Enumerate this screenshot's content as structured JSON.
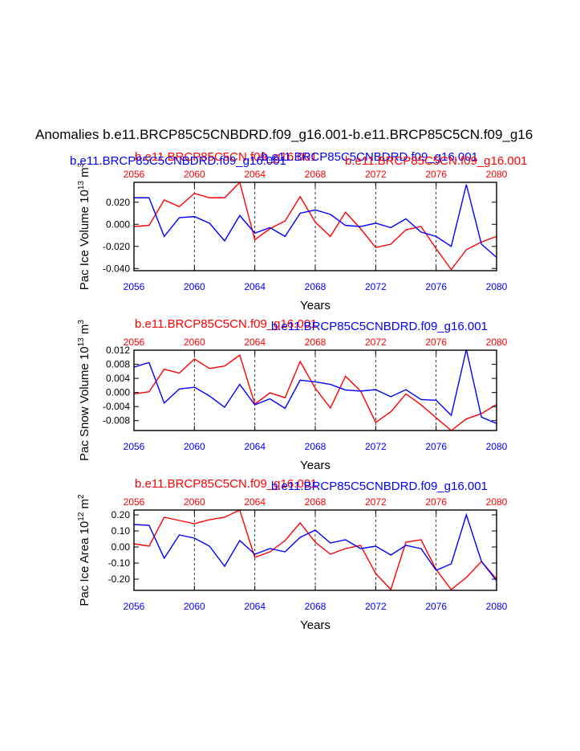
{
  "figure_title": "Anomalies b.e11.BRCP85C5CNBDRD.f09_g16.001-b.e11.BRCP85C5CN.f09_g16",
  "colors": {
    "run_a": "#ff0000",
    "run_b": "#0000ff",
    "axis": "#000000"
  },
  "chart_data": [
    {
      "type": "line",
      "ylabel_base": "Pac Ice Volume 10",
      "ylabel_exp": "13",
      "ylabel_unit": " m",
      "ylabel_unit_exp": "3",
      "xlabel": "Years",
      "legend_red": "b.e11.BRCP85C5CN.f09_g16.001",
      "legend_blue": "b.e11.BRCP85C5CNBDRD.f09_g16.001",
      "legend_red_alt": "b.e11.BRCP85C5CN.f09_g16.001",
      "legend_blue_alt": "b.e11.BRCP85C5CNBDRD.f09_g16.001",
      "xlim": [
        2056,
        2080
      ],
      "ylim": [
        -0.042,
        0.038
      ],
      "xticks": [
        2056,
        2060,
        2064,
        2068,
        2072,
        2076,
        2080
      ],
      "xtick_labels": [
        "2056",
        "2060",
        "2064",
        "2068",
        "2072",
        "2076",
        "2080"
      ],
      "yticks": [
        0.02,
        0.0,
        -0.02,
        -0.04
      ],
      "ytick_labels": [
        "0.020",
        "0.000",
        "-0.020",
        "-0.040"
      ],
      "grid_x": [
        2060,
        2064,
        2068,
        2072,
        2076
      ],
      "x": [
        2056,
        2057,
        2058,
        2059,
        2060,
        2061,
        2062,
        2063,
        2064,
        2065,
        2066,
        2067,
        2068,
        2069,
        2070,
        2071,
        2072,
        2073,
        2074,
        2075,
        2076,
        2077,
        2078,
        2079,
        2080
      ],
      "series": [
        {
          "name": "b.e11.BRCP85C5CN.f09_g16.001",
          "color": "#ff0000",
          "values": [
            -0.002,
            -0.001,
            0.022,
            0.016,
            0.028,
            0.024,
            0.024,
            0.038,
            -0.014,
            -0.004,
            0.003,
            0.025,
            0.002,
            -0.011,
            0.011,
            -0.004,
            -0.021,
            -0.018,
            -0.005,
            -0.002,
            -0.022,
            -0.041,
            -0.023,
            -0.016,
            -0.011
          ]
        },
        {
          "name": "b.e11.BRCP85C5CNBDRD.f09_g16.001",
          "color": "#0000ff",
          "values": [
            0.024,
            0.024,
            -0.011,
            0.006,
            0.007,
            0.001,
            -0.015,
            0.008,
            -0.008,
            -0.003,
            -0.011,
            0.01,
            0.013,
            0.009,
            -0.001,
            -0.002,
            0.001,
            -0.003,
            0.005,
            -0.007,
            -0.011,
            -0.02,
            0.036,
            -0.018,
            -0.03
          ]
        }
      ]
    },
    {
      "type": "line",
      "ylabel_base": "Pac Snow Volume 10",
      "ylabel_exp": "13",
      "ylabel_unit": " m",
      "ylabel_unit_exp": "3",
      "xlabel": "Years",
      "legend_red": "b.e11.BRCP85C5CN.f09_g16.001",
      "legend_blue": "b.e11.BRCP85C5CNBDRD.f09_g16.001",
      "xlim": [
        2056,
        2080
      ],
      "ylim": [
        -0.0108,
        0.012
      ],
      "xticks": [
        2056,
        2060,
        2064,
        2068,
        2072,
        2076,
        2080
      ],
      "xtick_labels": [
        "2056",
        "2060",
        "2064",
        "2068",
        "2072",
        "2076",
        "2080"
      ],
      "yticks": [
        0.012,
        0.008,
        0.004,
        0.0,
        -0.004,
        -0.008
      ],
      "ytick_labels": [
        "0.012",
        "0.008",
        "0.004",
        "0.000",
        "-0.004",
        "-0.008"
      ],
      "grid_x": [
        2060,
        2064,
        2068,
        2072,
        2076
      ],
      "x": [
        2056,
        2057,
        2058,
        2059,
        2060,
        2061,
        2062,
        2063,
        2064,
        2065,
        2066,
        2067,
        2068,
        2069,
        2070,
        2071,
        2072,
        2073,
        2074,
        2075,
        2076,
        2077,
        2078,
        2079,
        2080
      ],
      "series": [
        {
          "name": "b.e11.BRCP85C5CN.f09_g16.001",
          "color": "#ff0000",
          "values": [
            -0.0004,
            0.0002,
            0.0066,
            0.0055,
            0.0095,
            0.0068,
            0.0075,
            0.0106,
            -0.0033,
            -0.0001,
            -0.0015,
            0.0088,
            0.0012,
            -0.0044,
            0.0046,
            0.0004,
            -0.0085,
            -0.0055,
            -0.0004,
            -0.0035,
            -0.0072,
            -0.0108,
            -0.0075,
            -0.006,
            -0.0034
          ]
        },
        {
          "name": "b.e11.BRCP85C5CNBDRD.f09_g16.001",
          "color": "#0000ff",
          "values": [
            0.0072,
            0.0085,
            -0.003,
            0.001,
            0.0015,
            -0.001,
            -0.0042,
            0.0023,
            -0.0035,
            -0.0018,
            -0.0045,
            0.0035,
            0.003,
            0.0023,
            0.0007,
            0.0004,
            0.0008,
            -0.0012,
            0.0008,
            -0.002,
            -0.0022,
            -0.0065,
            0.0122,
            -0.007,
            -0.0088
          ]
        }
      ]
    },
    {
      "type": "line",
      "ylabel_base": "Pac Ice Area 10",
      "ylabel_exp": "12",
      "ylabel_unit": " m",
      "ylabel_unit_exp": "2",
      "xlabel": "Years",
      "legend_red": "b.e11.BRCP85C5CN.f09_g16.001",
      "legend_blue": "b.e11.BRCP85C5CNBDRD.f09_g16.001",
      "xlim": [
        2056,
        2080
      ],
      "ylim": [
        -0.27,
        0.23
      ],
      "xticks": [
        2056,
        2060,
        2064,
        2068,
        2072,
        2076,
        2080
      ],
      "xtick_labels": [
        "2056",
        "2060",
        "2064",
        "2068",
        "2072",
        "2076",
        "2080"
      ],
      "yticks": [
        0.2,
        0.1,
        0.0,
        -0.1,
        -0.2
      ],
      "ytick_labels": [
        "0.20",
        "0.10",
        "0.00",
        "-0.10",
        "-0.20"
      ],
      "grid_x": [
        2060,
        2064,
        2068,
        2072,
        2076
      ],
      "x": [
        2056,
        2057,
        2058,
        2059,
        2060,
        2061,
        2062,
        2063,
        2064,
        2065,
        2066,
        2067,
        2068,
        2069,
        2070,
        2071,
        2072,
        2073,
        2074,
        2075,
        2076,
        2077,
        2078,
        2079,
        2080
      ],
      "series": [
        {
          "name": "b.e11.BRCP85C5CN.f09_g16.001",
          "color": "#ff0000",
          "values": [
            0.02,
            0.005,
            0.185,
            0.165,
            0.145,
            0.17,
            0.185,
            0.23,
            -0.065,
            -0.03,
            0.04,
            0.15,
            0.03,
            -0.045,
            -0.01,
            0.01,
            -0.165,
            -0.265,
            0.03,
            0.045,
            -0.14,
            -0.265,
            -0.19,
            -0.09,
            -0.2
          ]
        },
        {
          "name": "b.e11.BRCP85C5CNBDRD.f09_g16.001",
          "color": "#0000ff",
          "values": [
            0.14,
            0.135,
            -0.07,
            0.075,
            0.055,
            0.005,
            -0.12,
            0.04,
            -0.045,
            -0.01,
            -0.03,
            0.06,
            0.105,
            0.025,
            0.045,
            -0.01,
            0.005,
            -0.05,
            0.01,
            -0.01,
            -0.145,
            -0.105,
            0.2,
            -0.09,
            -0.21
          ]
        }
      ]
    }
  ]
}
